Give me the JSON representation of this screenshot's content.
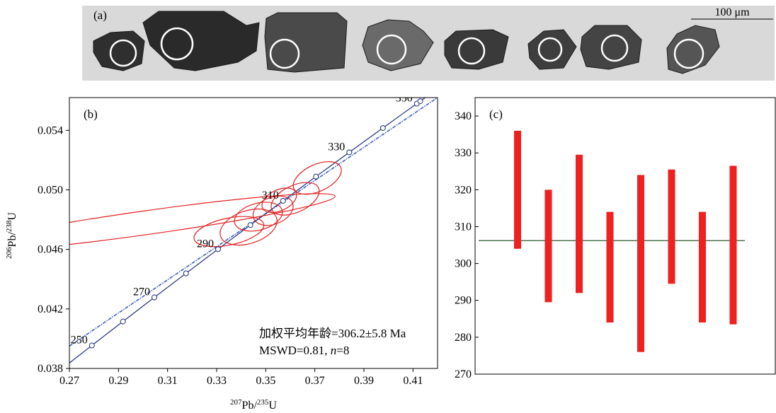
{
  "panel_a": {
    "label": "(a)",
    "scale_bar_label": "100 μm",
    "grains": [
      {
        "name": "grain-1",
        "shade": "#2f2f2f"
      },
      {
        "name": "grain-2",
        "shade": "#2a2a2a"
      },
      {
        "name": "grain-3",
        "shade": "#4a4a4a"
      },
      {
        "name": "grain-4",
        "shade": "#6a6a6a"
      },
      {
        "name": "grain-5",
        "shade": "#3a3a3a"
      },
      {
        "name": "grain-6",
        "shade": "#3e3e3e"
      },
      {
        "name": "grain-7",
        "shade": "#444444"
      },
      {
        "name": "grain-8",
        "shade": "#555555"
      }
    ]
  },
  "chart_data": [
    {
      "type": "scatter",
      "panel_label": "(b)",
      "title": "",
      "xlabel": {
        "sup": "207",
        "base": "Pb/",
        "sup2": "235",
        "end": "U"
      },
      "ylabel": {
        "sup": "206",
        "base": "Pb/",
        "sup2": "238",
        "end": "U"
      },
      "xlim": [
        0.27,
        0.42
      ],
      "ylim": [
        0.038,
        0.0562
      ],
      "xticks": [
        0.27,
        0.29,
        0.31,
        0.33,
        0.35,
        0.37,
        0.39,
        0.41
      ],
      "xtick_labels": [
        "0.27",
        "0.29",
        "0.31",
        "0.33",
        "0.35",
        "0.37",
        "0.39",
        "0.41"
      ],
      "yticks": [
        0.038,
        0.042,
        0.046,
        0.05,
        0.054
      ],
      "ytick_labels": [
        "0.038",
        "0.042",
        "0.046",
        "0.050",
        "0.054"
      ],
      "concordia_ages_ma": [
        250,
        260,
        270,
        280,
        290,
        300,
        310,
        320,
        330,
        340,
        350,
        351
      ],
      "concordia_age_labels": [
        {
          "age": 250,
          "text": "250"
        },
        {
          "age": 270,
          "text": "270"
        },
        {
          "age": 290,
          "text": "290"
        },
        {
          "age": 310,
          "text": "310"
        },
        {
          "age": 330,
          "text": "330"
        },
        {
          "age": 350,
          "text": "350"
        }
      ],
      "reference_line": [
        [
          0.27,
          0.0395
        ],
        [
          0.42,
          0.0562
        ]
      ],
      "ellipses": [
        {
          "cx": 0.3015,
          "cy": 0.0478,
          "rx": 0.0775,
          "ry": 0.0008,
          "angle": 8
        },
        {
          "cx": 0.335,
          "cy": 0.0472,
          "rx": 0.0145,
          "ry": 0.0009,
          "angle": 12
        },
        {
          "cx": 0.343,
          "cy": 0.0475,
          "rx": 0.012,
          "ry": 0.0011,
          "angle": 18
        },
        {
          "cx": 0.347,
          "cy": 0.0482,
          "rx": 0.01,
          "ry": 0.0009,
          "angle": 15
        },
        {
          "cx": 0.353,
          "cy": 0.0486,
          "rx": 0.0085,
          "ry": 0.0009,
          "angle": 22
        },
        {
          "cx": 0.3555,
          "cy": 0.0493,
          "rx": 0.0075,
          "ry": 0.0007,
          "angle": 25
        },
        {
          "cx": 0.362,
          "cy": 0.0494,
          "rx": 0.0105,
          "ry": 0.0009,
          "angle": 25
        },
        {
          "cx": 0.371,
          "cy": 0.0508,
          "rx": 0.0105,
          "ry": 0.0009,
          "angle": 25
        }
      ],
      "annotation_line1": "加权平均年龄=306.2±5.8 Ma",
      "annotation_line2_prefix": "MSWD=0.81, ",
      "annotation_line2_n": "n",
      "annotation_line2_suffix": "=8",
      "colors": {
        "concordia": "#1f2f7a",
        "reference": "#3f5fbf",
        "ellipse": "#e02020"
      }
    },
    {
      "type": "bar",
      "panel_label": "(c)",
      "title": "",
      "xlabel": "",
      "ylabel": "",
      "ylim": [
        270,
        345
      ],
      "yticks": [
        270,
        280,
        290,
        300,
        310,
        320,
        330,
        340
      ],
      "ytick_labels": [
        "270",
        "280",
        "290",
        "300",
        "310",
        "320",
        "330",
        "340"
      ],
      "error_bars": [
        {
          "low": 304,
          "high": 336
        },
        {
          "low": 289.5,
          "high": 320
        },
        {
          "low": 292,
          "high": 329.5
        },
        {
          "low": 284,
          "high": 314
        },
        {
          "low": 276,
          "high": 324
        },
        {
          "low": 294.5,
          "high": 325.5
        },
        {
          "low": 284,
          "high": 314
        },
        {
          "low": 283.5,
          "high": 326.5
        }
      ],
      "weighted_mean": 306.2,
      "colors": {
        "bar": "#ee2020",
        "mean_line": "#2e5a2e"
      }
    }
  ]
}
